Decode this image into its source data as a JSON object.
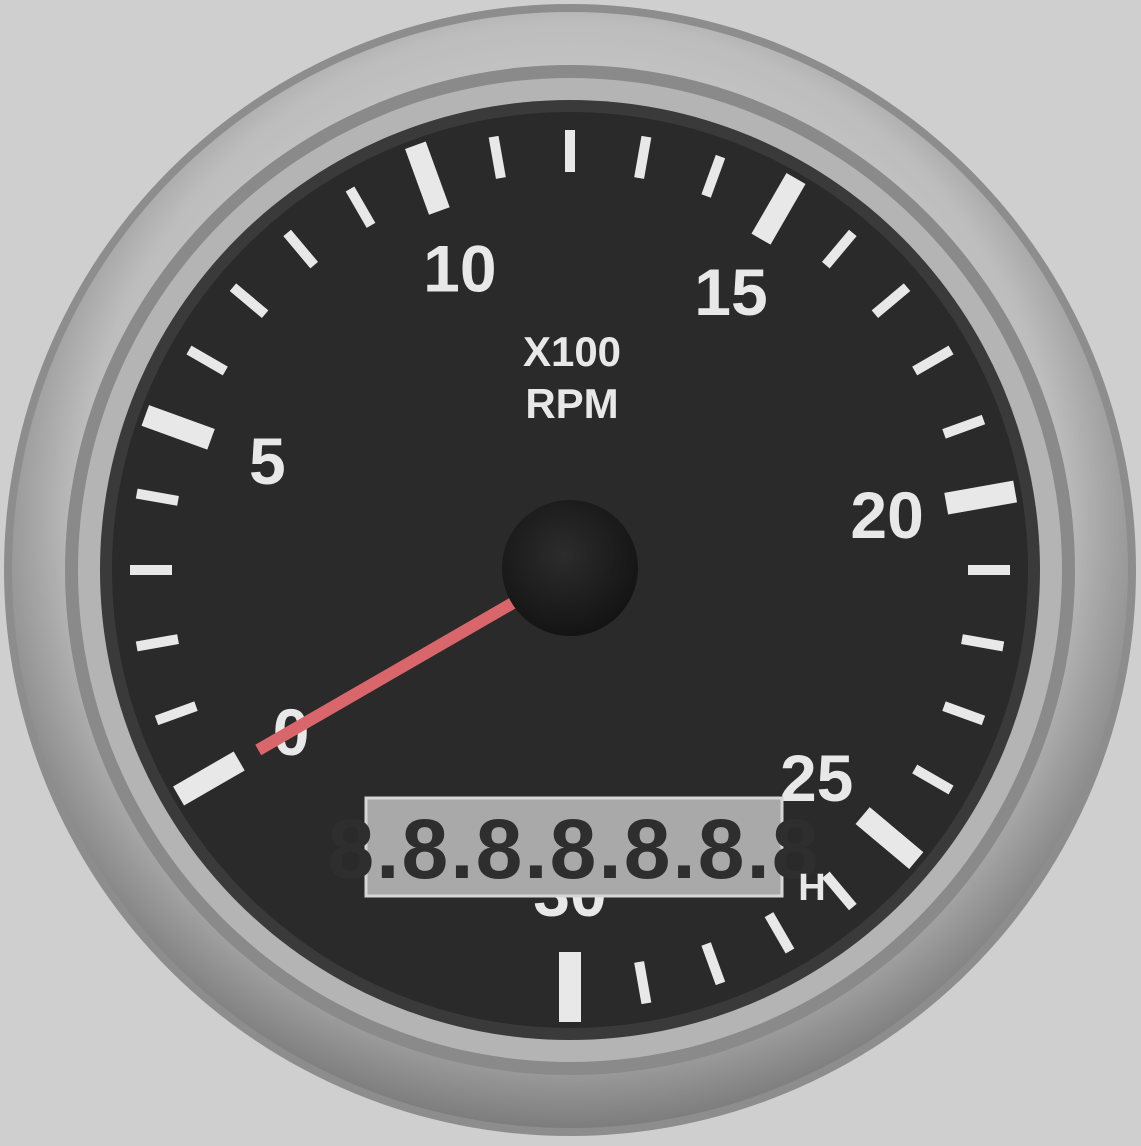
{
  "gauge": {
    "scale_labels": [
      "0",
      "5",
      "10",
      "15",
      "20",
      "25",
      "30"
    ],
    "scale_min": 0,
    "scale_max": 30,
    "minor_ticks_per_major": 5,
    "multiplier_label": "X100",
    "unit_label": "RPM",
    "needle_value": 0,
    "lcd_digits": "8.8.8.8.8.8.8",
    "lcd_unit": "H"
  },
  "colors": {
    "background": "#cfcfcf",
    "bezel": "#b8b8b8",
    "dial_face": "#2a2a2a",
    "markings": "#e8e8e8",
    "needle": "#d9666a",
    "lcd_bg": "#a9a9a9",
    "lcd_segments": "#2e2e2e"
  }
}
